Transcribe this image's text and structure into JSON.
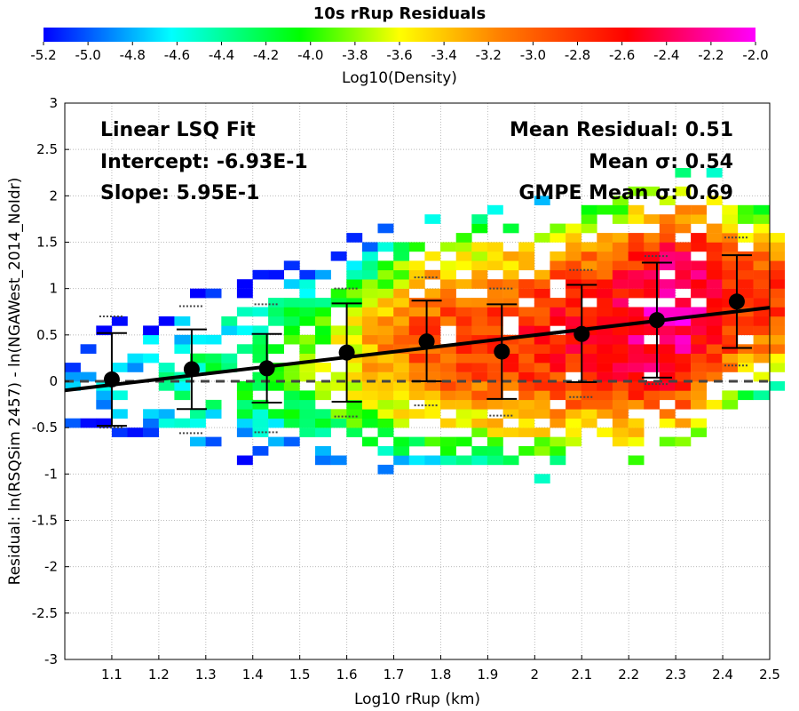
{
  "chart_data": {
    "type": "heatmap",
    "title": "10s rRup Residuals",
    "xlabel": "Log10 rRup (km)",
    "ylabel": "Residual: ln(RSQSim 2457) - ln(NGAWest_2014_NoIdr)",
    "xlim": [
      1.0,
      2.5
    ],
    "ylim": [
      -3,
      3
    ],
    "x_ticks": [
      "1.1",
      "1.2",
      "1.3",
      "1.4",
      "1.5",
      "1.6",
      "1.7",
      "1.8",
      "1.9",
      "2",
      "2.1",
      "2.2",
      "2.3",
      "2.4",
      "2.5"
    ],
    "y_ticks": [
      "3",
      "2.5",
      "2",
      "1.5",
      "1",
      "0.5",
      "0",
      "-0.5",
      "-1",
      "-1.5",
      "-2",
      "-2.5",
      "-3"
    ],
    "grid": true,
    "colorbar": {
      "label": "Log10(Density)",
      "range": [
        -5.2,
        -2.0
      ],
      "ticks": [
        "-5.2",
        "-5.0",
        "-4.8",
        "-4.6",
        "-4.4",
        "-4.2",
        "-4.0",
        "-3.8",
        "-3.6",
        "-3.4",
        "-3.2",
        "-3.0",
        "-2.8",
        "-2.6",
        "-2.4",
        "-2.2",
        "-2.0"
      ],
      "colors": [
        "#0000ff",
        "#00ffff",
        "#00ff00",
        "#ffff00",
        "#ff8000",
        "#ff0000",
        "#ff00ff"
      ]
    },
    "annotations": {
      "fit_title": "Linear LSQ Fit",
      "intercept": "Intercept: -6.93E-1",
      "slope": "Slope: 5.95E-1",
      "mean_residual": "Mean Residual: 0.51",
      "mean_sigma": "Mean σ: 0.54",
      "gmpe_mean_sigma": "GMPE Mean σ: 0.69"
    },
    "fit_line": {
      "intercept": -0.693,
      "slope": 0.595
    },
    "zero_line": 0,
    "binned_means": [
      {
        "x": 1.1,
        "mean": 0.02,
        "upper": 0.52,
        "lower": -0.48
      },
      {
        "x": 1.27,
        "mean": 0.13,
        "upper": 0.56,
        "lower": -0.3
      },
      {
        "x": 1.43,
        "mean": 0.14,
        "upper": 0.51,
        "lower": -0.23
      },
      {
        "x": 1.6,
        "mean": 0.31,
        "upper": 0.84,
        "lower": -0.22
      },
      {
        "x": 1.77,
        "mean": 0.43,
        "upper": 0.87,
        "lower": 0.0
      },
      {
        "x": 1.93,
        "mean": 0.32,
        "upper": 0.83,
        "lower": -0.19
      },
      {
        "x": 2.1,
        "mean": 0.51,
        "upper": 1.04,
        "lower": -0.01
      },
      {
        "x": 2.26,
        "mean": 0.66,
        "upper": 1.28,
        "lower": 0.04
      },
      {
        "x": 2.43,
        "mean": 0.86,
        "upper": 1.36,
        "lower": 0.36
      }
    ],
    "gmpe_sigma_bounds": [
      {
        "x": 1.1,
        "upper": 0.7,
        "lower": -0.5
      },
      {
        "x": 1.27,
        "upper": 0.81,
        "lower": -0.56
      },
      {
        "x": 1.43,
        "upper": 0.83,
        "lower": -0.55
      },
      {
        "x": 1.6,
        "upper": 1.0,
        "lower": -0.38
      },
      {
        "x": 1.77,
        "upper": 1.12,
        "lower": -0.26
      },
      {
        "x": 1.93,
        "upper": 1.0,
        "lower": -0.37
      },
      {
        "x": 2.1,
        "upper": 1.2,
        "lower": -0.17
      },
      {
        "x": 2.26,
        "upper": 1.35,
        "lower": -0.03
      },
      {
        "x": 2.43,
        "upper": 1.55,
        "lower": 0.17
      }
    ],
    "density_grid": {
      "x_bin_width": 0.0333,
      "y_bin_width": 0.1,
      "ridge": [
        {
          "x": 1.0,
          "center": -0.05,
          "halfwidth": 0.9
        },
        {
          "x": 1.3,
          "center": 0.05,
          "halfwidth": 1.1
        },
        {
          "x": 1.6,
          "center": 0.25,
          "halfwidth": 1.2
        },
        {
          "x": 1.8,
          "center": 0.45,
          "halfwidth": 1.3
        },
        {
          "x": 2.0,
          "center": 0.45,
          "halfwidth": 1.35
        },
        {
          "x": 2.2,
          "center": 0.6,
          "halfwidth": 1.4
        },
        {
          "x": 2.35,
          "center": 0.8,
          "halfwidth": 1.35
        },
        {
          "x": 2.5,
          "center": 0.9,
          "halfwidth": 1.0
        }
      ],
      "density_ramp": [
        {
          "x": 1.0,
          "peak": -4.9
        },
        {
          "x": 1.3,
          "peak": -4.3
        },
        {
          "x": 1.55,
          "peak": -3.8
        },
        {
          "x": 1.75,
          "peak": -2.95
        },
        {
          "x": 1.95,
          "peak": -2.75
        },
        {
          "x": 2.15,
          "peak": -2.55
        },
        {
          "x": 2.3,
          "peak": -2.15
        },
        {
          "x": 2.45,
          "peak": -2.8
        }
      ]
    }
  }
}
